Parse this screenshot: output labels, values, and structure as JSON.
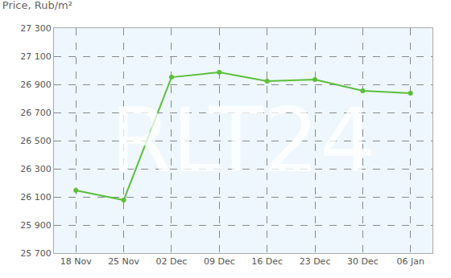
{
  "chart_data": {
    "type": "line",
    "title": "Price, Rub/m²",
    "categories": [
      "18 Nov",
      "25 Nov",
      "02 Dec",
      "09 Dec",
      "16 Dec",
      "23 Dec",
      "30 Dec",
      "06 Jan"
    ],
    "values": [
      26146,
      26077,
      26951,
      26986,
      26923,
      26934,
      26854,
      26837
    ],
    "color": "#5cbf3a",
    "marker": "circle",
    "grid": true,
    "annotations": [
      "RLT24"
    ],
    "ylim": [
      25700,
      27300
    ],
    "yticks": [
      {
        "value": 25700,
        "label": "25 700"
      },
      {
        "value": 25900,
        "label": "25 900"
      },
      {
        "value": 26100,
        "label": "26 100"
      },
      {
        "value": 26300,
        "label": "26 300"
      },
      {
        "value": 26500,
        "label": "26 500"
      },
      {
        "value": 26700,
        "label": "26 700"
      },
      {
        "value": 26900,
        "label": "26 900"
      },
      {
        "value": 27100,
        "label": "27 100"
      },
      {
        "value": 27300,
        "label": "27 300"
      }
    ]
  }
}
